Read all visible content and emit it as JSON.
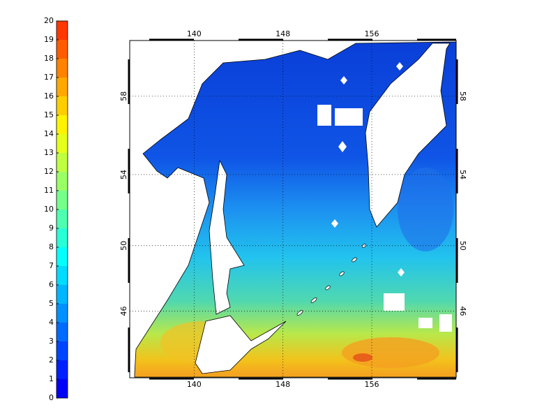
{
  "chart_data": {
    "type": "map",
    "projection": "mercator",
    "colorbar": {
      "clim": [
        0,
        20
      ],
      "ticks": [
        0,
        1,
        2,
        3,
        4,
        5,
        6,
        7,
        8,
        9,
        10,
        11,
        12,
        13,
        14,
        15,
        16,
        17,
        18,
        19,
        20
      ],
      "levels": 20,
      "colormap": "jet"
    },
    "lonlim": [
      134.2,
      163.6
    ],
    "latlim": [
      41.6,
      60.6
    ],
    "lonticks": [
      140,
      148,
      156
    ],
    "latticks": [
      46,
      50,
      54,
      58
    ],
    "grid": true
  }
}
